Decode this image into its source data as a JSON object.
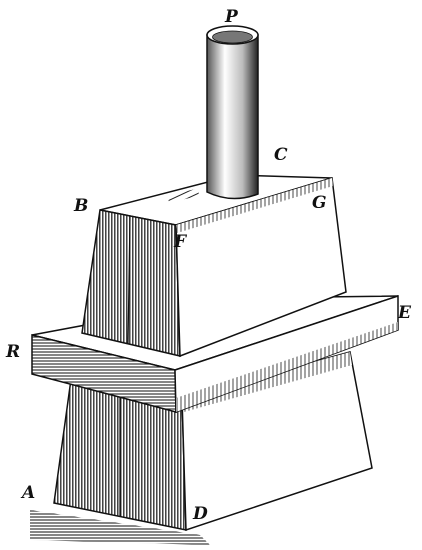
{
  "figure": {
    "labels": {
      "P": "P",
      "C": "C",
      "B": "B",
      "G": "G",
      "F": "F",
      "E": "E",
      "R": "R",
      "A": "A",
      "D": "D"
    },
    "colors": {
      "ink": "#111111",
      "paper": "#ffffff",
      "shade_dark": "#2a2a2a",
      "shade_mid": "#6a6a6a",
      "shade_light": "#bdbdbd"
    }
  }
}
